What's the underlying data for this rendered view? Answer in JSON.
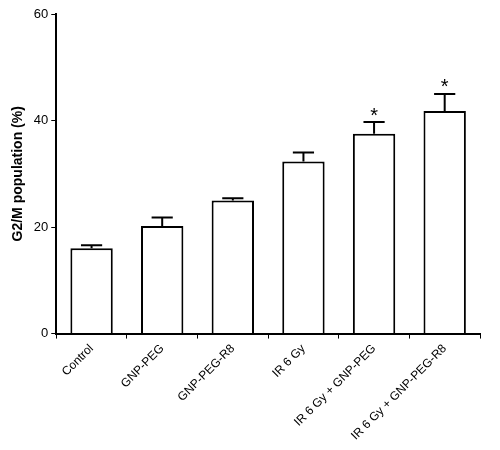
{
  "chart_data": {
    "type": "bar",
    "y_label": "G2/M population (%)",
    "categories": [
      "Control",
      "GNP-PEG",
      "GNP-PEG-R8",
      "IR 6 Gy",
      "IR 6 Gy + GNP-PEG",
      "IR 6 Gy + GNP-PEG-R8"
    ],
    "values": [
      16,
      20.2,
      25,
      32.3,
      37.5,
      41.8
    ],
    "errors": [
      0.6,
      1.6,
      0.4,
      1.7,
      2.2,
      3.2
    ],
    "color": "#ffffff",
    "ylim": [
      0,
      60
    ],
    "yticks": [
      0,
      20,
      40,
      60
    ],
    "grid": false,
    "annotations": [
      {
        "category": "IR 6 Gy + GNP-PEG",
        "text": "*"
      },
      {
        "category": "IR 6 Gy + GNP-PEG-R8",
        "text": "*"
      }
    ]
  }
}
